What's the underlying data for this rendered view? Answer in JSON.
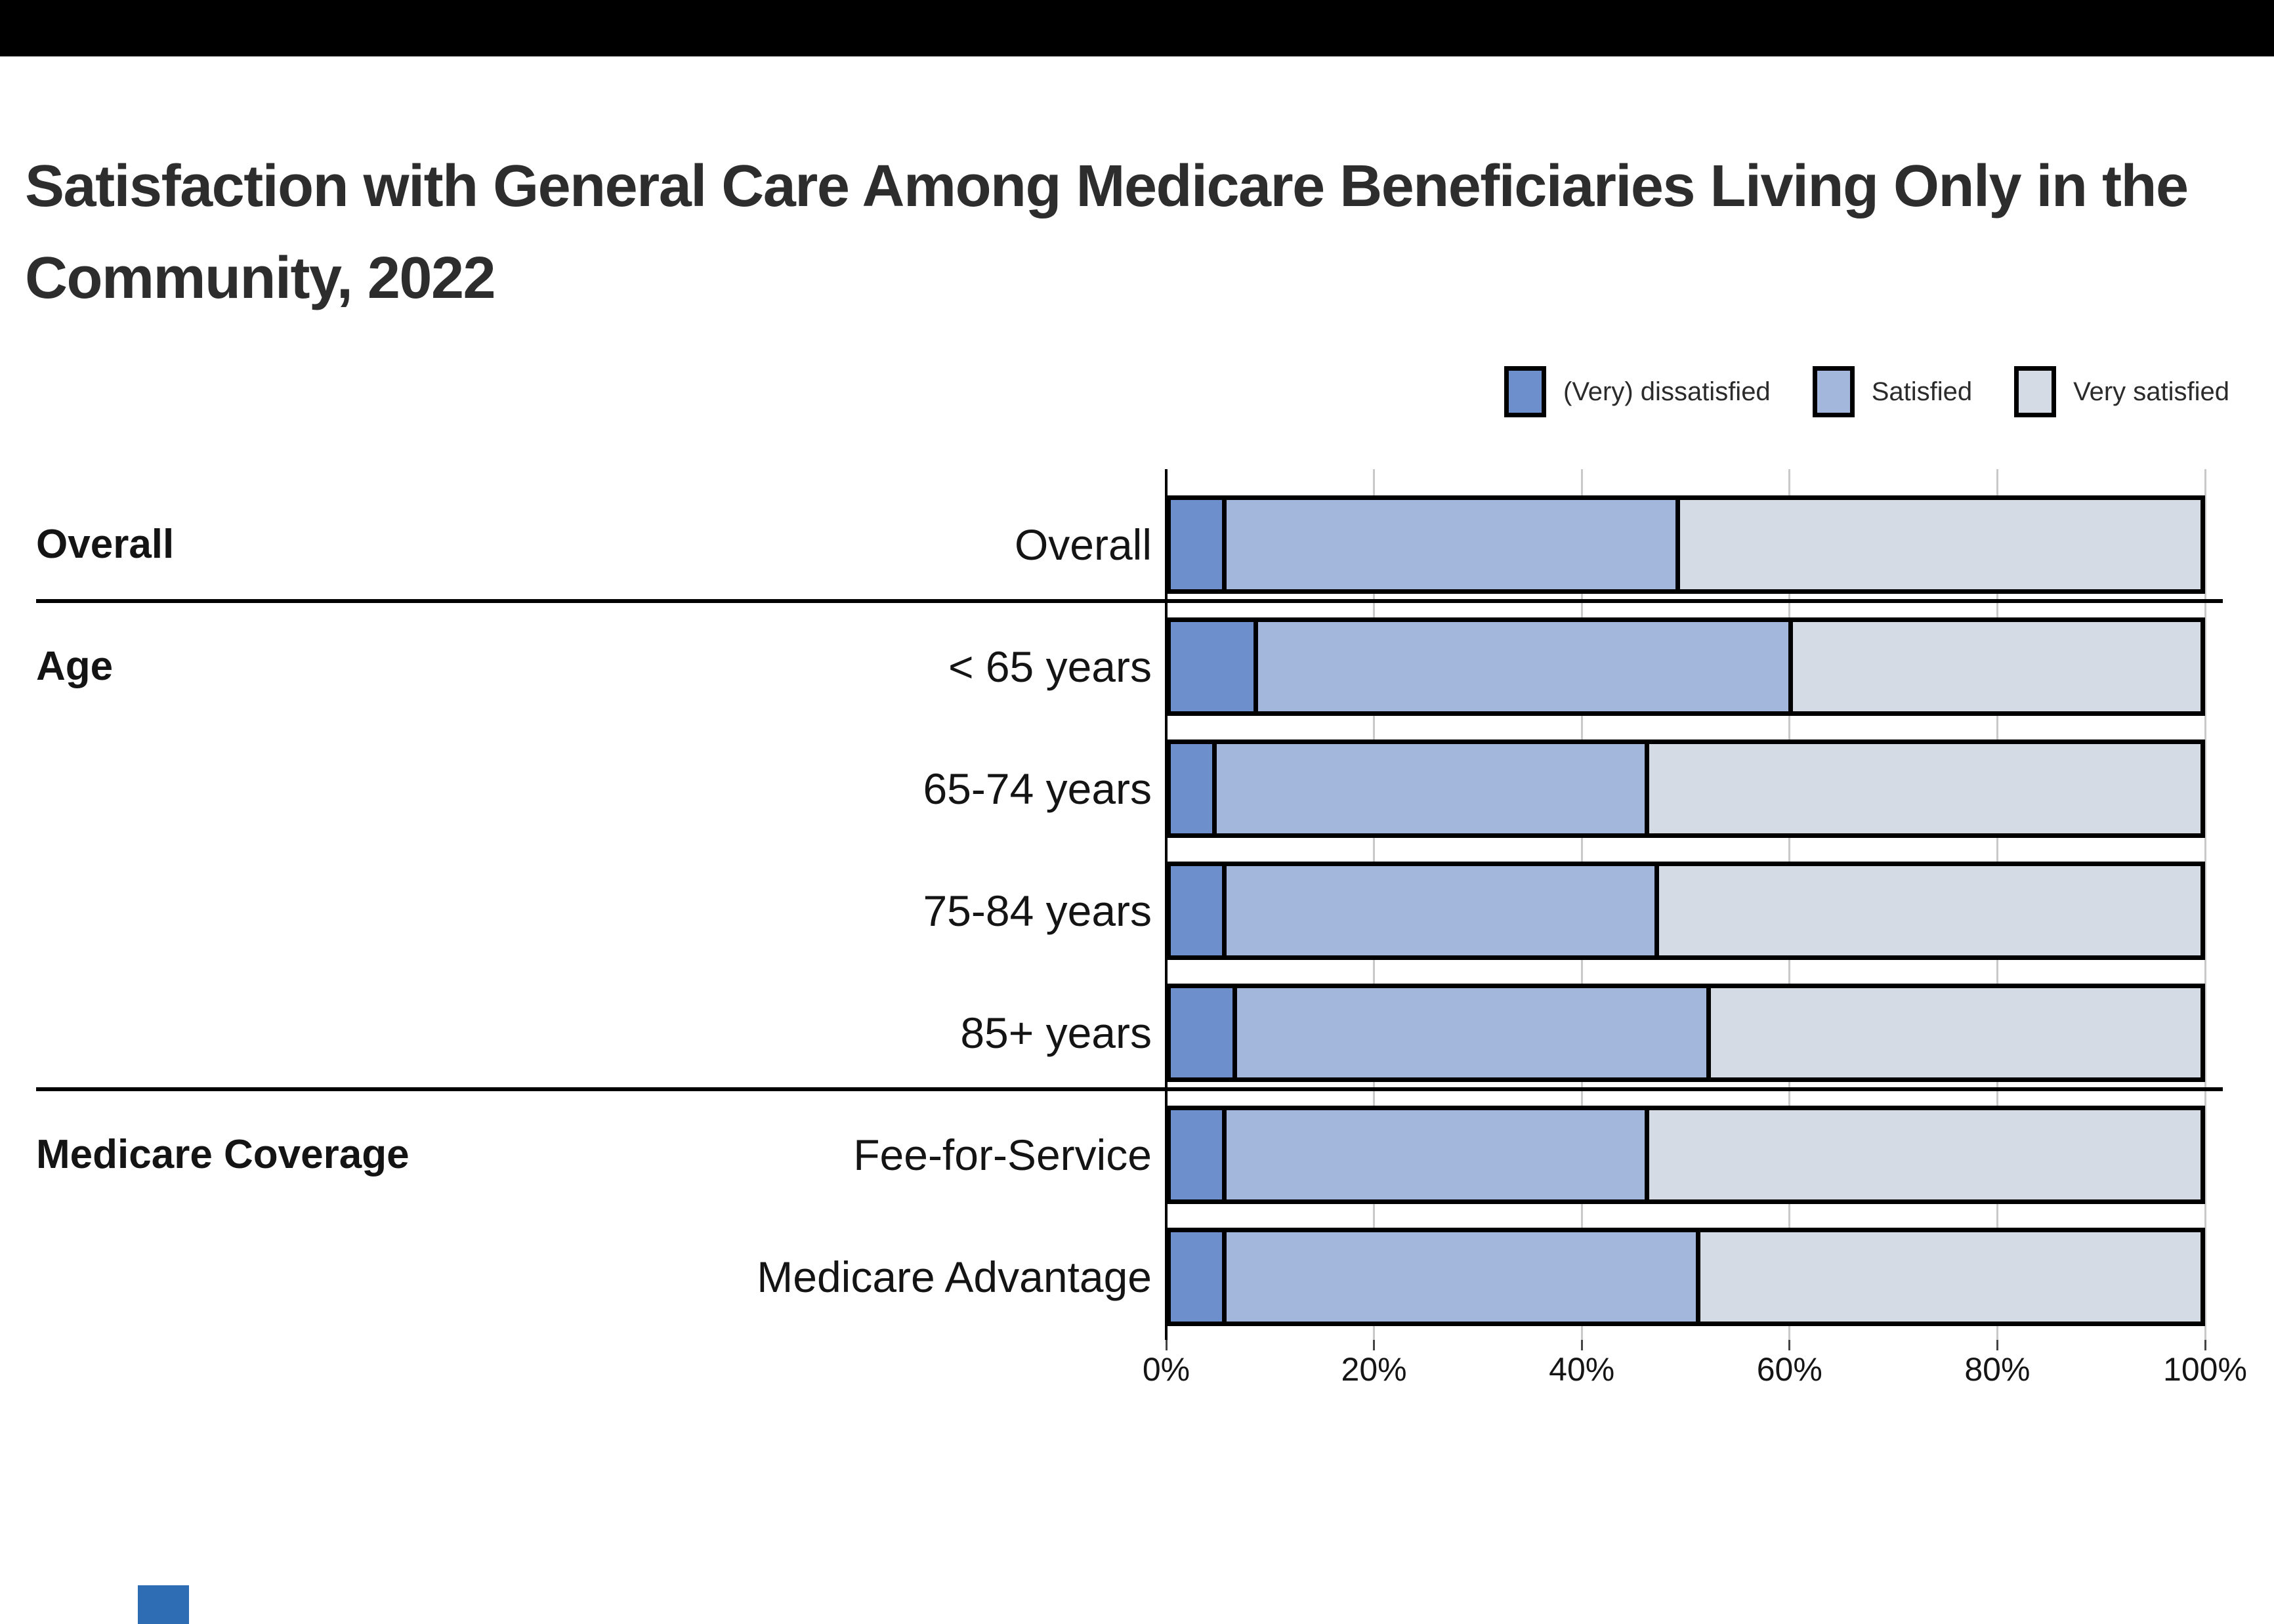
{
  "title": {
    "line1": "Satisfaction with General Care Among Medicare Beneficiaries Living Only in the",
    "line2": "Community, 2022"
  },
  "chart_data": {
    "type": "bar",
    "stacked": true,
    "orientation": "horizontal",
    "title": "Satisfaction with General Care Among Medicare Beneficiaries Living Only in the Community, 2022",
    "series": [
      {
        "name": "(Very) dissatisfied",
        "color": "#6D8FCB"
      },
      {
        "name": "Satisfied",
        "color": "#A3B6DB"
      },
      {
        "name": "Very satisfied",
        "color": "#D5DBE4"
      }
    ],
    "groups": [
      {
        "label": "Overall",
        "rows": [
          {
            "label": "Overall",
            "values": [
              5,
              44,
              51
            ]
          }
        ]
      },
      {
        "label": "Age",
        "rows": [
          {
            "label": "< 65 years",
            "values": [
              8,
              52,
              40
            ]
          },
          {
            "label": "65-74 years",
            "values": [
              4,
              42,
              54
            ]
          },
          {
            "label": "75-84 years",
            "values": [
              5,
              42,
              53
            ]
          },
          {
            "label": "85+ years",
            "values": [
              6,
              46,
              48
            ]
          }
        ]
      },
      {
        "label": "Medicare Coverage",
        "rows": [
          {
            "label": "Fee-for-Service",
            "values": [
              5,
              41,
              54
            ]
          },
          {
            "label": "Medicare Advantage",
            "values": [
              5,
              46,
              49
            ]
          }
        ]
      }
    ],
    "x_axis": {
      "min": 0,
      "max": 100,
      "tick_labels": [
        "0%",
        "20%",
        "40%",
        "60%",
        "80%",
        "100%"
      ],
      "unit": "percent"
    },
    "grid": true,
    "legend_position": "top-right"
  },
  "colors": {
    "top_bar": "#000000",
    "bar_border": "#000000",
    "axis_line": "#000000",
    "gridline": "#C9C9C9",
    "group_separator": "#000000",
    "title_text": "#2D2D2D",
    "label_text": "#141414",
    "logo_fragment": "#2E6DB4"
  }
}
